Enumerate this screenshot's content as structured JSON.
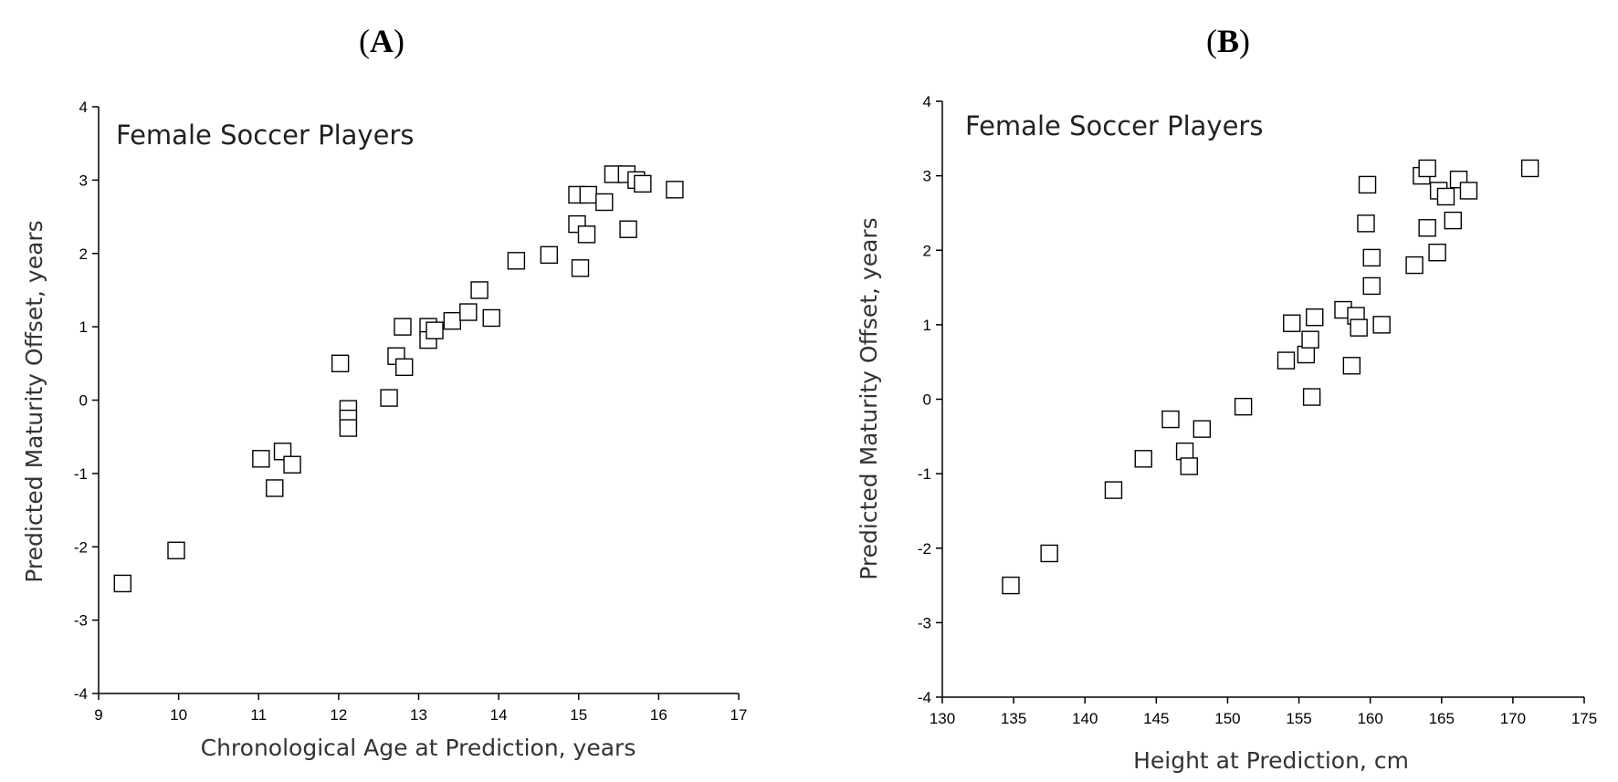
{
  "chart_data": [
    {
      "type": "scatter",
      "panel_label": "A",
      "title": "Female Soccer Players",
      "xlabel": "Chronological Age at Prediction, years",
      "ylabel": "Predicted Maturity Offset, years",
      "xlim": [
        9,
        17
      ],
      "ylim": [
        -4,
        4
      ],
      "xticks": [
        9,
        10,
        11,
        12,
        13,
        14,
        15,
        16,
        17
      ],
      "yticks": [
        -4,
        -3,
        -2,
        -1,
        0,
        1,
        2,
        3,
        4
      ],
      "grid": false,
      "marker": "open-square",
      "points": [
        [
          9.3,
          -2.5
        ],
        [
          9.97,
          -2.05
        ],
        [
          11.03,
          -0.8
        ],
        [
          11.2,
          -1.2
        ],
        [
          11.3,
          -0.7
        ],
        [
          11.42,
          -0.88
        ],
        [
          12.02,
          0.5
        ],
        [
          12.12,
          -0.12
        ],
        [
          12.12,
          -0.25
        ],
        [
          12.12,
          -0.38
        ],
        [
          12.63,
          0.03
        ],
        [
          12.72,
          0.6
        ],
        [
          12.8,
          1.0
        ],
        [
          12.82,
          0.45
        ],
        [
          13.12,
          1.0
        ],
        [
          13.12,
          0.82
        ],
        [
          13.2,
          0.95
        ],
        [
          13.42,
          1.08
        ],
        [
          13.62,
          1.2
        ],
        [
          13.76,
          1.5
        ],
        [
          13.91,
          1.12
        ],
        [
          14.22,
          1.9
        ],
        [
          14.63,
          1.98
        ],
        [
          14.98,
          2.8
        ],
        [
          14.98,
          2.4
        ],
        [
          15.02,
          1.8
        ],
        [
          15.1,
          2.26
        ],
        [
          15.12,
          2.8
        ],
        [
          15.32,
          2.7
        ],
        [
          15.43,
          3.08
        ],
        [
          15.6,
          3.08
        ],
        [
          15.62,
          2.33
        ],
        [
          15.72,
          3.0
        ],
        [
          15.8,
          2.95
        ],
        [
          16.2,
          2.87
        ]
      ]
    },
    {
      "type": "scatter",
      "panel_label": "B",
      "title": "Female Soccer Players",
      "xlabel": "Height at Prediction, cm",
      "ylabel": "Predicted Maturity Offset, years",
      "xlim": [
        130,
        175
      ],
      "ylim": [
        -4,
        4
      ],
      "xticks": [
        130,
        135,
        140,
        145,
        150,
        155,
        160,
        165,
        170,
        175
      ],
      "yticks": [
        -4,
        -3,
        -2,
        -1,
        0,
        1,
        2,
        3,
        4
      ],
      "grid": false,
      "marker": "open-square",
      "points": [
        [
          134.8,
          -2.5
        ],
        [
          137.5,
          -2.07
        ],
        [
          142.0,
          -1.22
        ],
        [
          144.1,
          -0.8
        ],
        [
          146.0,
          -0.27
        ],
        [
          147.0,
          -0.7
        ],
        [
          147.3,
          -0.9
        ],
        [
          148.2,
          -0.4
        ],
        [
          151.1,
          -0.1
        ],
        [
          154.1,
          0.52
        ],
        [
          154.5,
          1.02
        ],
        [
          155.5,
          0.6
        ],
        [
          155.8,
          0.8
        ],
        [
          155.9,
          0.03
        ],
        [
          156.1,
          1.1
        ],
        [
          158.1,
          1.2
        ],
        [
          158.7,
          0.45
        ],
        [
          159.0,
          1.12
        ],
        [
          159.2,
          0.96
        ],
        [
          159.7,
          2.36
        ],
        [
          159.8,
          2.88
        ],
        [
          160.1,
          1.9
        ],
        [
          160.1,
          1.52
        ],
        [
          160.8,
          1.0
        ],
        [
          163.1,
          1.8
        ],
        [
          163.6,
          3.0
        ],
        [
          164.0,
          3.1
        ],
        [
          164.0,
          2.3
        ],
        [
          164.7,
          1.97
        ],
        [
          164.8,
          2.8
        ],
        [
          165.3,
          2.72
        ],
        [
          165.8,
          2.4
        ],
        [
          166.2,
          2.95
        ],
        [
          166.9,
          2.8
        ],
        [
          171.2,
          3.1
        ]
      ]
    }
  ]
}
